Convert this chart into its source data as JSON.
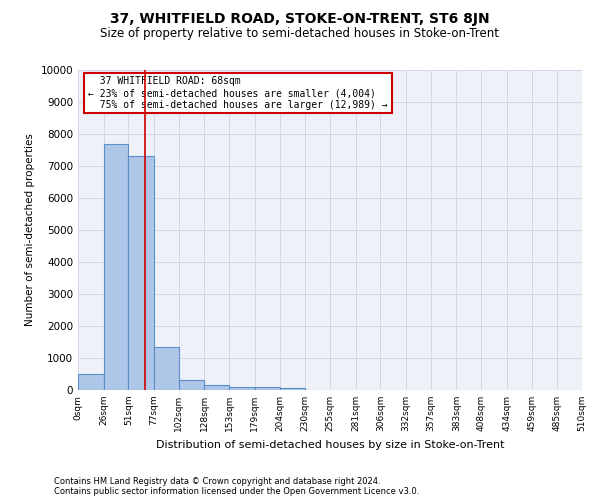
{
  "title": "37, WHITFIELD ROAD, STOKE-ON-TRENT, ST6 8JN",
  "subtitle": "Size of property relative to semi-detached houses in Stoke-on-Trent",
  "xlabel": "Distribution of semi-detached houses by size in Stoke-on-Trent",
  "ylabel": "Number of semi-detached properties",
  "footnote1": "Contains HM Land Registry data © Crown copyright and database right 2024.",
  "footnote2": "Contains public sector information licensed under the Open Government Licence v3.0.",
  "bar_edges": [
    0,
    26,
    51,
    77,
    102,
    128,
    153,
    179,
    204,
    230,
    255,
    281,
    306,
    332,
    357,
    383,
    408,
    434,
    459,
    485,
    510
  ],
  "bar_labels": [
    "0sqm",
    "26sqm",
    "51sqm",
    "77sqm",
    "102sqm",
    "128sqm",
    "153sqm",
    "179sqm",
    "204sqm",
    "230sqm",
    "255sqm",
    "281sqm",
    "306sqm",
    "332sqm",
    "357sqm",
    "383sqm",
    "408sqm",
    "434sqm",
    "459sqm",
    "485sqm",
    "510sqm"
  ],
  "bar_heights": [
    500,
    7700,
    7300,
    1350,
    300,
    150,
    100,
    100,
    50,
    0,
    0,
    0,
    0,
    0,
    0,
    0,
    0,
    0,
    0,
    0
  ],
  "bar_color": "#aec6e8",
  "bar_edge_color": "#5b8fc9",
  "property_size": 68,
  "property_label": "37 WHITFIELD ROAD: 68sqm",
  "pct_smaller": 23,
  "count_smaller": 4004,
  "pct_larger": 75,
  "count_larger": 12989,
  "annotation_box_color": "#cc0000",
  "red_line_color": "#cc0000",
  "ylim": [
    0,
    10000
  ],
  "yticks": [
    0,
    1000,
    2000,
    3000,
    4000,
    5000,
    6000,
    7000,
    8000,
    9000,
    10000
  ],
  "grid_color": "#d0d8e8",
  "bg_color": "#eef2f8",
  "title_fontsize": 10,
  "subtitle_fontsize": 8.5
}
